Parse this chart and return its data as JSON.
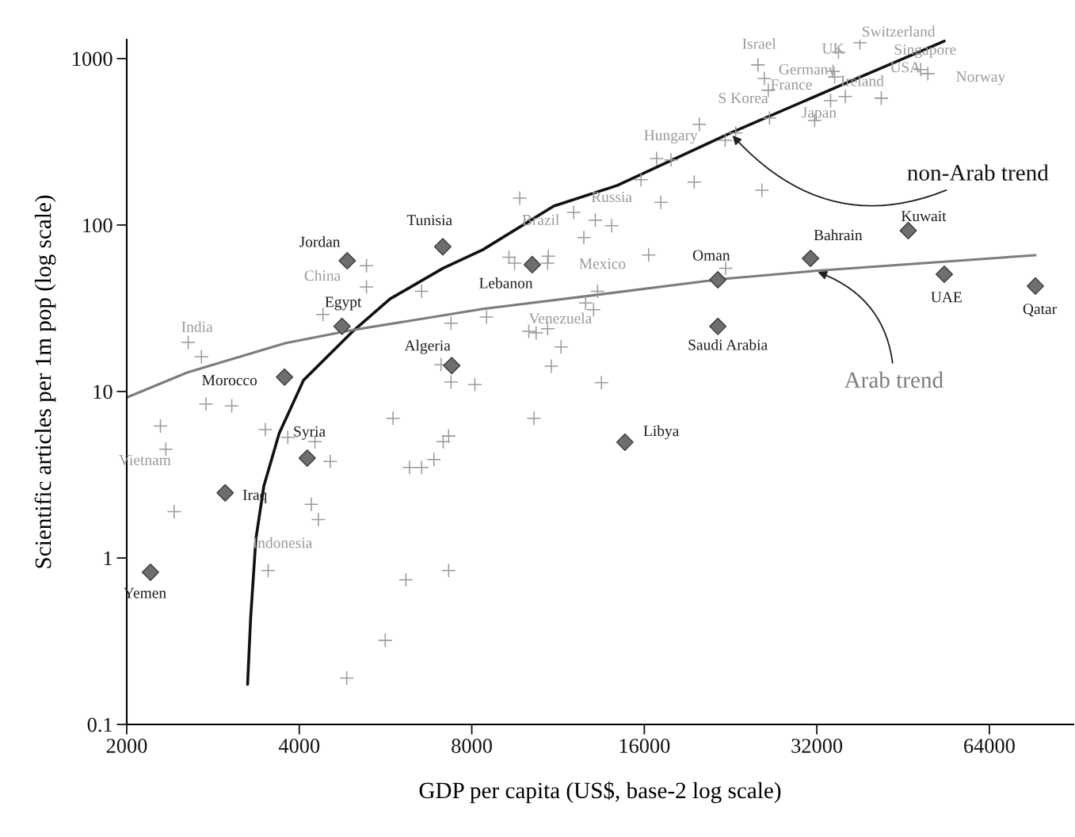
{
  "chart_data": {
    "type": "scatter",
    "xlabel": "GDP per capita (US$, base-2 log scale)",
    "ylabel": "Scientific articles per 1m pop (log scale)",
    "log": "xy",
    "xlim": [
      2000,
      89700
    ],
    "xticks": [
      2000,
      4000,
      8000,
      16000,
      32000,
      64000
    ],
    "ylim": [
      0.1,
      1300
    ],
    "yticks": [
      0.1,
      1,
      10,
      100,
      1000
    ],
    "grid": false,
    "series": [
      {
        "marker": "cross",
        "color": "#9a9a9a",
        "x": [
          2560,
          2700,
          2750,
          3050,
          2290,
          2340,
          2420,
          3490,
          3820,
          4260,
          4530,
          4200,
          4320,
          3530,
          6140,
          7290,
          5650,
          4840,
          5830,
          7290,
          7130,
          6870,
          6230,
          6540,
          7360,
          8100,
          5240,
          5240,
          4400,
          6540,
          7360,
          7070,
          9700,
          15790,
          19550,
          25660,
          17100,
          12050,
          13140,
          14030,
          12550,
          9290,
          9500,
          10880,
          10850,
          16280,
          22190,
          13260,
          12640,
          13050,
          8490,
          10060,
          10360,
          10850,
          11450,
          11010,
          13470,
          10270,
          25260,
          25910,
          26330,
          38050,
          34910,
          34150,
          34370,
          33820,
          35880,
          41450,
          49990,
          48580,
          31720,
          26460,
          19960,
          22140,
          23100,
          16810,
          17810
        ],
        "values": [
          19.7,
          16.2,
          8.4,
          8.2,
          6.2,
          4.5,
          1.9,
          5.9,
          5.3,
          5.0,
          3.8,
          2.1,
          1.7,
          0.84,
          0.74,
          0.84,
          0.32,
          0.19,
          6.9,
          5.4,
          5.0,
          3.9,
          3.5,
          3.5,
          11.4,
          11.0,
          57,
          42.5,
          29,
          40,
          25.7,
          14.5,
          145,
          187,
          181,
          162,
          137,
          119,
          107,
          99,
          84,
          64,
          59,
          65,
          59,
          66,
          55,
          40,
          34,
          31,
          28,
          23,
          22.5,
          23.8,
          18.5,
          14.2,
          11.3,
          6.9,
          916,
          760,
          645,
          1245,
          1092,
          839,
          777,
          559,
          591,
          578,
          812,
          858,
          425,
          439,
          402,
          323,
          357,
          251,
          246
        ]
      },
      {
        "marker": "diamond",
        "color": "#6e6e6e",
        "x": [
          2200,
          2970,
          3770,
          4130,
          4750,
          4850,
          7120,
          7380,
          10200,
          14800,
          21500,
          21500,
          31200,
          46200,
          53400,
          77000
        ],
        "values": [
          0.82,
          2.46,
          12.2,
          3.98,
          24.6,
          61,
          74,
          14.3,
          57.8,
          4.96,
          46.9,
          24.6,
          63,
          92.6,
          50.6,
          43
        ]
      },
      {
        "type": "line",
        "name": "non-Arab trend",
        "marker": "none",
        "line_style": "solid",
        "color": "#111111",
        "x": [
          3250,
          3290,
          3360,
          3470,
          3690,
          4070,
          4980,
          5760,
          7130,
          8360,
          11120,
          14360,
          22600,
          34910,
          53400
        ],
        "values": [
          0.174,
          0.435,
          1.3,
          2.71,
          5.6,
          11.7,
          23.3,
          36,
          55,
          71,
          130,
          173,
          357,
          681,
          1273
        ]
      },
      {
        "type": "line",
        "name": "Arab trend",
        "marker": "none",
        "line_style": "solid",
        "color": "#7c7c7c",
        "x": [
          2000,
          2550,
          3780,
          4920,
          8360,
          12930,
          21890,
          31720,
          77000
        ],
        "values": [
          9.2,
          13.0,
          19.5,
          23.3,
          31.3,
          37.7,
          47.4,
          53,
          65.9
        ]
      }
    ],
    "annotations": [
      {
        "text": "Israel",
        "x": 25260,
        "y": 916
      },
      {
        "text": "Switzerland",
        "x": 38050,
        "y": 1245
      },
      {
        "text": "UK",
        "x": 34910,
        "y": 1092
      },
      {
        "text": "Singapore",
        "x": 48580,
        "y": 858
      },
      {
        "text": "Germany",
        "x": 25910,
        "y": 760
      },
      {
        "text": "USA",
        "x": 48580,
        "y": 858
      },
      {
        "text": "Norway",
        "x": 49990,
        "y": 812
      },
      {
        "text": "France",
        "x": 26330,
        "y": 645
      },
      {
        "text": "Ireland",
        "x": 34370,
        "y": 777
      },
      {
        "text": "S Korea",
        "x": 26460,
        "y": 439
      },
      {
        "text": "Japan",
        "x": 31720,
        "y": 425
      },
      {
        "text": "Hungary",
        "x": 19960,
        "y": 402
      },
      {
        "text": "Russia",
        "x": 14030,
        "y": 99
      },
      {
        "text": "Brazil",
        "x": 12050,
        "y": 119
      },
      {
        "text": "Mexico",
        "x": 16280,
        "y": 66
      },
      {
        "text": "China",
        "x": 5240,
        "y": 42.5
      },
      {
        "text": "India",
        "x": 2560,
        "y": 19.7
      },
      {
        "text": "Venezuela",
        "x": 10360,
        "y": 22.5
      },
      {
        "text": "Vietnam",
        "x": 2340,
        "y": 4.5
      },
      {
        "text": "Indonesia",
        "x": 3530,
        "y": 0.84
      },
      {
        "text": "Yemen",
        "x": 2200,
        "y": 0.82
      },
      {
        "text": "Iraq",
        "x": 2970,
        "y": 2.46
      },
      {
        "text": "Morocco",
        "x": 3770,
        "y": 12.2
      },
      {
        "text": "Syria",
        "x": 4130,
        "y": 3.98
      },
      {
        "text": "Egypt",
        "x": 4750,
        "y": 24.6
      },
      {
        "text": "Jordan",
        "x": 4850,
        "y": 61
      },
      {
        "text": "Tunisia",
        "x": 7120,
        "y": 74
      },
      {
        "text": "Algeria",
        "x": 7380,
        "y": 14.3
      },
      {
        "text": "Lebanon",
        "x": 10200,
        "y": 57.8
      },
      {
        "text": "Libya",
        "x": 14800,
        "y": 4.96
      },
      {
        "text": "Oman",
        "x": 21500,
        "y": 46.9
      },
      {
        "text": "Saudi Arabia",
        "x": 21500,
        "y": 24.6
      },
      {
        "text": "Bahrain",
        "x": 31200,
        "y": 63
      },
      {
        "text": "Kuwait",
        "x": 46200,
        "y": 92.6
      },
      {
        "text": "UAE",
        "x": 53400,
        "y": 50.6
      },
      {
        "text": "Qatar",
        "x": 77000,
        "y": 43
      }
    ]
  }
}
